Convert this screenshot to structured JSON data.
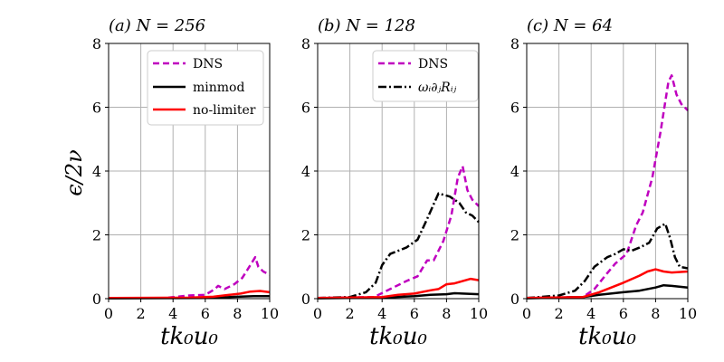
{
  "colors": {
    "dns": "#bf00bf",
    "minmod": "#000000",
    "nolimiter": "#ff0000",
    "model": "#000000",
    "grid": "#b0b0b0"
  },
  "y_label": "ϵ/2ν",
  "chart_data": [
    {
      "type": "line",
      "title": "(a) N = 256",
      "xlabel": "tk₀u₀",
      "ylabel": "ϵ/2ν",
      "xlim": [
        0,
        10
      ],
      "ylim": [
        0,
        8
      ],
      "xticks": [
        "0",
        "2",
        "4",
        "6",
        "8",
        "10"
      ],
      "yticks": [
        "0",
        "2",
        "4",
        "6",
        "8"
      ],
      "grid": true,
      "legend_position": "top-right",
      "series": [
        {
          "name": "DNS",
          "style": "dashed",
          "color": "#bf00bf",
          "x": [
            0,
            3.5,
            4.2,
            5,
            6,
            6.6,
            6.8,
            7.2,
            7.8,
            8.3,
            8.8,
            9.1,
            9.3,
            9.6,
            10
          ],
          "y": [
            0.02,
            0.02,
            0.06,
            0.1,
            0.12,
            0.3,
            0.4,
            0.3,
            0.45,
            0.65,
            1.05,
            1.3,
            1.0,
            0.85,
            0.75
          ]
        },
        {
          "name": "minmod",
          "style": "solid",
          "color": "#000000",
          "x": [
            0,
            6,
            7,
            8,
            9,
            10
          ],
          "y": [
            0.01,
            0.02,
            0.04,
            0.06,
            0.08,
            0.08
          ]
        },
        {
          "name": "no-limiter",
          "style": "solid",
          "color": "#ff0000",
          "x": [
            0,
            5,
            6.5,
            7.5,
            8.2,
            8.8,
            9.4,
            10
          ],
          "y": [
            0.02,
            0.03,
            0.06,
            0.12,
            0.16,
            0.22,
            0.24,
            0.2
          ]
        }
      ]
    },
    {
      "type": "line",
      "title": "(b) N = 128",
      "xlabel": "tk₀u₀",
      "ylabel": "",
      "xlim": [
        0,
        10
      ],
      "ylim": [
        0,
        8
      ],
      "xticks": [
        "0",
        "2",
        "4",
        "6",
        "8",
        "10"
      ],
      "yticks": [
        "0",
        "2",
        "4",
        "6",
        "8"
      ],
      "grid": true,
      "legend_position": "top-right",
      "series": [
        {
          "name": "DNS",
          "style": "dashed",
          "color": "#bf00bf",
          "x": [
            0,
            3.5,
            4.5,
            5.5,
            6.2,
            6.8,
            7.2,
            7.8,
            8.3,
            8.7,
            9,
            9.3,
            9.6,
            10
          ],
          "y": [
            0.02,
            0.05,
            0.3,
            0.55,
            0.7,
            1.2,
            1.2,
            1.8,
            2.6,
            3.8,
            4.15,
            3.4,
            3.1,
            2.9
          ]
        },
        {
          "name": "ωᵢ∂ⱼRᵢⱼ",
          "style": "dashdot",
          "color": "#000000",
          "x": [
            0,
            2,
            3,
            3.6,
            4,
            4.5,
            5.5,
            6.2,
            6.8,
            7.5,
            8.2,
            8.8,
            9.2,
            9.6,
            10
          ],
          "y": [
            0.02,
            0.05,
            0.2,
            0.5,
            1.05,
            1.4,
            1.6,
            1.85,
            2.5,
            3.3,
            3.2,
            3.0,
            2.7,
            2.6,
            2.4
          ]
        },
        {
          "name": "minmod",
          "style": "solid",
          "color": "#000000",
          "x": [
            0,
            4,
            6,
            7,
            8,
            8.5,
            10
          ],
          "y": [
            0.01,
            0.03,
            0.08,
            0.12,
            0.14,
            0.17,
            0.14
          ]
        },
        {
          "name": "no-limiter",
          "style": "solid",
          "color": "#ff0000",
          "x": [
            0,
            4,
            5,
            6,
            7,
            7.5,
            8,
            8.5,
            9,
            9.5,
            10
          ],
          "y": [
            0.02,
            0.05,
            0.12,
            0.16,
            0.26,
            0.3,
            0.45,
            0.48,
            0.55,
            0.62,
            0.58
          ]
        }
      ]
    },
    {
      "type": "line",
      "title": "(c) N = 64",
      "xlabel": "tk₀u₀",
      "ylabel": "",
      "xlim": [
        0,
        10
      ],
      "ylim": [
        0,
        8
      ],
      "xticks": [
        "0",
        "2",
        "4",
        "6",
        "8",
        "10"
      ],
      "yticks": [
        "0",
        "2",
        "4",
        "6",
        "8"
      ],
      "grid": true,
      "legend_position": "none",
      "series": [
        {
          "name": "DNS",
          "style": "dashed",
          "color": "#bf00bf",
          "x": [
            0,
            3.5,
            4.2,
            5,
            5.5,
            6.2,
            6.8,
            7.2,
            7.8,
            8.3,
            8.8,
            9,
            9.3,
            9.6,
            10
          ],
          "y": [
            0.02,
            0.05,
            0.3,
            0.8,
            1.1,
            1.4,
            2.3,
            2.7,
            3.8,
            5.2,
            6.8,
            7.0,
            6.4,
            6.1,
            5.9
          ]
        },
        {
          "name": "ωᵢ∂ⱼRᵢⱼ",
          "style": "dashdot",
          "color": "#000000",
          "x": [
            0,
            2,
            3,
            3.6,
            4.2,
            5,
            5.5,
            6,
            6.5,
            7,
            7.6,
            8.1,
            8.6,
            8.9,
            9.2,
            9.5,
            10
          ],
          "y": [
            0.02,
            0.1,
            0.25,
            0.55,
            1.0,
            1.3,
            1.4,
            1.55,
            1.5,
            1.6,
            1.75,
            2.2,
            2.35,
            1.9,
            1.3,
            1.0,
            0.95
          ]
        },
        {
          "name": "minmod",
          "style": "solid",
          "color": "#000000",
          "x": [
            0,
            3.5,
            4.5,
            6,
            7,
            8,
            8.5,
            9,
            10
          ],
          "y": [
            0.01,
            0.05,
            0.12,
            0.2,
            0.25,
            0.35,
            0.42,
            0.4,
            0.35
          ]
        },
        {
          "name": "no-limiter",
          "style": "solid",
          "color": "#ff0000",
          "x": [
            0,
            3.5,
            4.5,
            5.5,
            6,
            7,
            7.5,
            8,
            8.5,
            9,
            10
          ],
          "y": [
            0.02,
            0.05,
            0.2,
            0.4,
            0.5,
            0.72,
            0.85,
            0.92,
            0.85,
            0.82,
            0.85
          ]
        }
      ]
    }
  ]
}
